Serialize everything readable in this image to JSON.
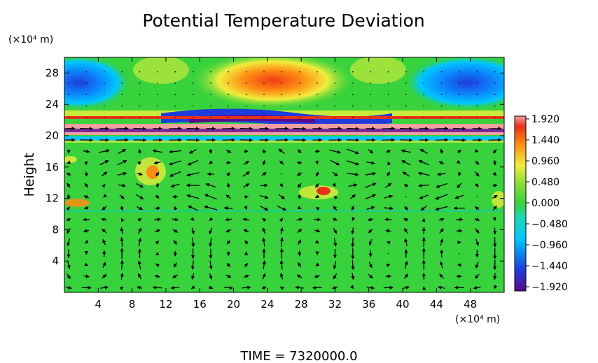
{
  "chart_data": {
    "type": "heatmap",
    "title": "Potential Temperature Deviation",
    "ylabel": "Height",
    "y_unit": "(×10⁴ m)",
    "x_unit": "(×10⁴ m)",
    "footer": "TIME = 7320000.0",
    "xlim": [
      0,
      52
    ],
    "ylim": [
      0,
      30
    ],
    "x_ticks": [
      "4",
      "8",
      "12",
      "16",
      "20",
      "24",
      "28",
      "32",
      "36",
      "40",
      "44",
      "48"
    ],
    "y_ticks": [
      "4",
      "8",
      "12",
      "16",
      "20",
      "24",
      "28"
    ],
    "colorbar": {
      "min": -1.92,
      "max": 1.92,
      "tick_labels": [
        "1.920",
        "1.440",
        "0.960",
        "0.480",
        "0.000",
        "−0.480",
        "−0.960",
        "−1.440",
        "−1.920"
      ]
    },
    "overlay": "wind vectors",
    "colors": {
      "dark_violet": "#5a0a8a",
      "blue": "#1e3cdc",
      "cyan": "#00c8ff",
      "green": "#37d23c",
      "yellow": "#f0ee3c",
      "orange": "#ff8c14",
      "red": "#e63219",
      "pink": "#f0a0a0"
    }
  }
}
